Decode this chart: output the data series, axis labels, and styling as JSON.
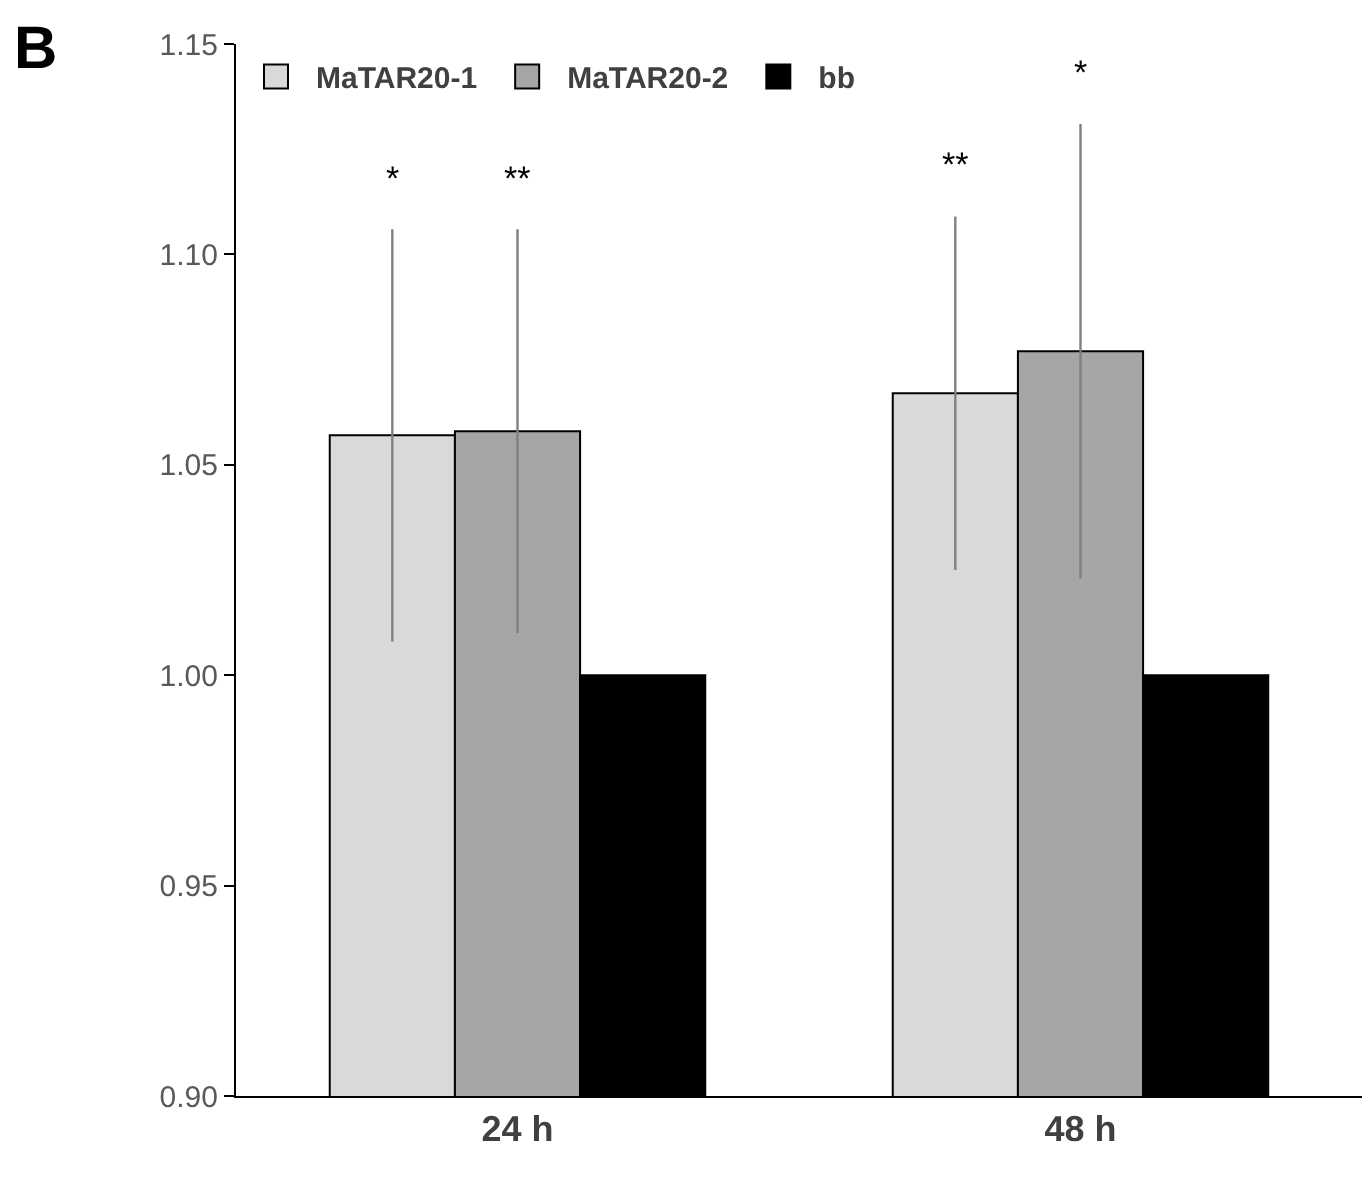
{
  "chart_data": {
    "type": "bar",
    "categories": [
      "24 h",
      "48 h"
    ],
    "series": [
      {
        "name": "MaTAR20-1",
        "color": "#d9d9d9",
        "values": [
          1.057,
          1.067
        ],
        "errors": [
          0.049,
          0.042
        ]
      },
      {
        "name": "MaTAR20-2",
        "color": "#a6a6a6",
        "values": [
          1.058,
          1.077
        ],
        "errors": [
          0.048,
          0.054
        ]
      },
      {
        "name": "bb",
        "color": "#000000",
        "values": [
          1.0,
          1.0
        ],
        "errors": [
          0,
          0
        ]
      }
    ],
    "ylim": [
      0.9,
      1.15
    ],
    "yticks": [
      {
        "value": 0.9,
        "label": "0.90"
      },
      0.95,
      {
        "value": 1.0,
        "label": "1.00"
      },
      1.05,
      {
        "value": 1.1,
        "label": "1.10"
      },
      1.15
    ],
    "legend": "top left",
    "annotations": [
      "B",
      "*",
      "**",
      "**",
      "*"
    ]
  }
}
